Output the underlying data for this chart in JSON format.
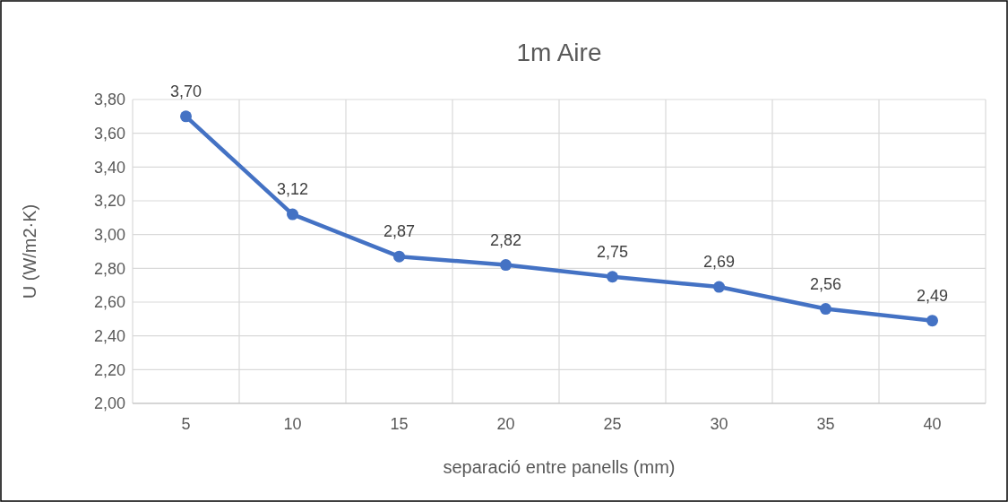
{
  "chart_data": {
    "type": "line",
    "title": "1m Aire",
    "xlabel": "separació entre panells (mm)",
    "ylabel": "U (W/m2·K)",
    "categories": [
      "5",
      "10",
      "15",
      "20",
      "25",
      "30",
      "35",
      "40"
    ],
    "series": [
      {
        "color": "#4472c4",
        "values": [
          3.7,
          3.12,
          2.87,
          2.82,
          2.75,
          2.69,
          2.56,
          2.49
        ],
        "value_labels": [
          "3,70",
          "3,12",
          "2,87",
          "2,82",
          "2,75",
          "2,69",
          "2,56",
          "2,49"
        ]
      }
    ],
    "ylim": [
      2,
      3.8
    ],
    "yticks": [
      {
        "value": 2,
        "label": "2,00"
      },
      {
        "value": 2.2,
        "label": "2,20"
      },
      {
        "value": 2.4,
        "label": "2,40"
      },
      {
        "value": 2.6,
        "label": "2,60"
      },
      {
        "value": 2.8,
        "label": "2,80"
      },
      {
        "value": 3,
        "label": "3,00"
      },
      {
        "value": 3.2,
        "label": "3,20"
      },
      {
        "value": 3.4,
        "label": "3,40"
      },
      {
        "value": 3.6,
        "label": "3,60"
      },
      {
        "value": 3.8,
        "label": "3,80"
      }
    ],
    "grid": true,
    "marker": "circle"
  }
}
